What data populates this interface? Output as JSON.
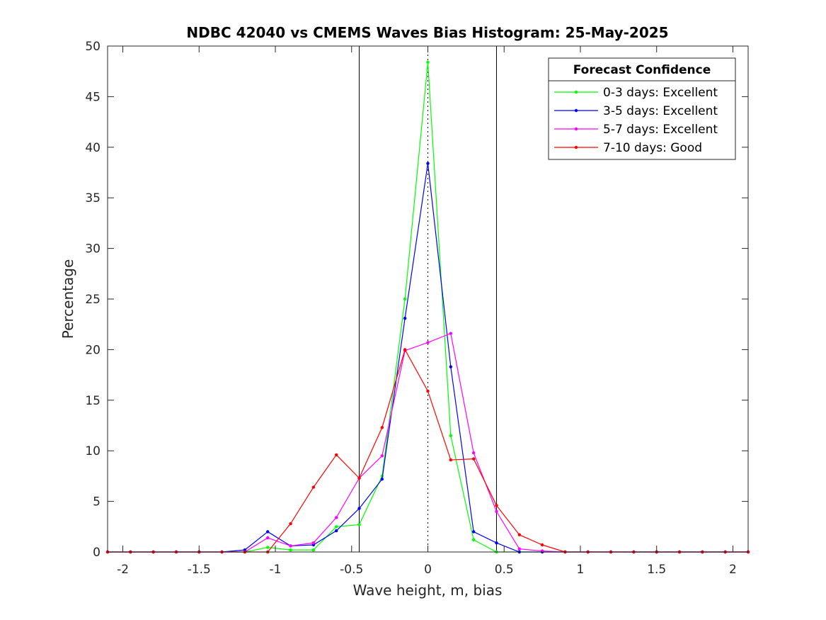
{
  "chart_data": {
    "type": "line",
    "title": "NDBC 42040 vs CMEMS Waves Bias Histogram: 25-May-2025",
    "xlabel": "Wave height, m, bias",
    "ylabel": "Percentage",
    "xlim": [
      -2.1,
      2.1
    ],
    "ylim": [
      0,
      50
    ],
    "xticks": [
      -2,
      -1.5,
      -1,
      -0.5,
      0,
      0.5,
      1,
      1.5,
      2
    ],
    "xtick_labels": [
      "-2",
      "-1.5",
      "-1",
      "-0.5",
      "0",
      "0.5",
      "1",
      "1.5",
      "2"
    ],
    "yticks": [
      0,
      5,
      10,
      15,
      20,
      25,
      30,
      35,
      40,
      45,
      50
    ],
    "ytick_labels": [
      "0",
      "5",
      "10",
      "15",
      "20",
      "25",
      "30",
      "35",
      "40",
      "45",
      "50"
    ],
    "grid": false,
    "reference_lines": {
      "solid_x": [
        -0.45,
        0.45
      ],
      "dotted_x": [
        0
      ]
    },
    "legend": {
      "title": "Forecast Confidence",
      "placement": "top-right"
    },
    "x": [
      -2.1,
      -1.95,
      -1.8,
      -1.65,
      -1.5,
      -1.35,
      -1.2,
      -1.05,
      -0.9,
      -0.75,
      -0.6,
      -0.45,
      -0.3,
      -0.15,
      0,
      0.15,
      0.3,
      0.45,
      0.6,
      0.75,
      0.9,
      1.05,
      1.2,
      1.35,
      1.5,
      1.65,
      1.8,
      1.95,
      2.1
    ],
    "series": [
      {
        "name": "0-3 days: Excellent",
        "color": "#00ff00",
        "values": [
          0,
          0,
          0,
          0,
          0,
          0,
          0,
          0.45,
          0.2,
          0.2,
          2.5,
          2.7,
          7.5,
          25.0,
          48.4,
          11.5,
          1.2,
          0,
          0,
          0,
          0,
          0,
          0,
          0,
          0,
          0,
          0,
          0,
          0
        ]
      },
      {
        "name": "3-5 days: Excellent",
        "color": "#0000ff",
        "values": [
          0,
          0,
          0,
          0,
          0,
          0,
          0.2,
          2.0,
          0.6,
          0.7,
          2.1,
          4.3,
          7.2,
          23.1,
          38.4,
          18.3,
          2.0,
          0.9,
          0,
          0,
          0,
          0,
          0,
          0,
          0,
          0,
          0,
          0,
          0
        ]
      },
      {
        "name": "5-7 days: Excellent",
        "color": "#ff00ff",
        "values": [
          0,
          0,
          0,
          0,
          0,
          0,
          0,
          1.4,
          0.6,
          0.9,
          3.4,
          7.3,
          9.5,
          19.9,
          20.7,
          21.6,
          9.8,
          4.0,
          0.3,
          0.1,
          0,
          0,
          0,
          0,
          0,
          0,
          0,
          0,
          0
        ]
      },
      {
        "name": "7-10 days: Good",
        "color": "#ff0000",
        "values": [
          0,
          0,
          0,
          0,
          0,
          0,
          0,
          0,
          2.8,
          6.4,
          9.6,
          7.3,
          12.3,
          20.0,
          15.9,
          9.1,
          9.2,
          4.6,
          1.7,
          0.7,
          0,
          0,
          0,
          0,
          0,
          0,
          0,
          0,
          0
        ]
      }
    ]
  }
}
